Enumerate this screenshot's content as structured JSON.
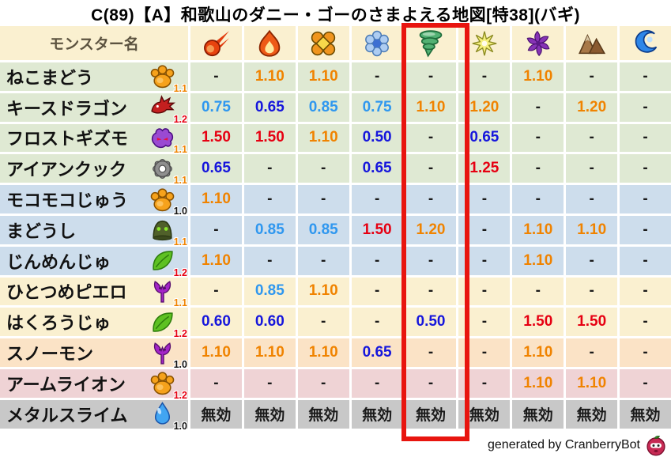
{
  "title": "C(89)【A】和歌山のダニー・ゴーのさまよえる地図[特38](バギ)",
  "chart_data": {
    "type": "table",
    "title": "C(89)【A】和歌山のダニー・ゴーのさまよえる地図[特38](バギ)",
    "name_header": "モンスター名",
    "column_icons": [
      "fireball-icon",
      "flame-icon",
      "burst-icon",
      "snowflake-icon",
      "tornado-icon",
      "spark-icon",
      "pinwheel-icon",
      "mountain-icon",
      "wave-icon"
    ],
    "highlighted_column_index": 4,
    "immune_label": "無効",
    "rows": [
      {
        "name": "ねこまどう",
        "family_icon": "paw-icon",
        "scale": "1.1",
        "row_color": "green",
        "values": [
          "-",
          "1.10",
          "1.10",
          "-",
          "-",
          "-",
          "1.10",
          "-",
          "-"
        ]
      },
      {
        "name": "キースドラゴン",
        "family_icon": "dragon-icon",
        "scale": "1.2",
        "row_color": "green",
        "values": [
          "0.75",
          "0.65",
          "0.85",
          "0.75",
          "1.10",
          "1.20",
          "-",
          "1.20",
          "-"
        ]
      },
      {
        "name": "フロストギズモ",
        "family_icon": "demon-icon",
        "scale": "1.1",
        "row_color": "green",
        "values": [
          "1.50",
          "1.50",
          "1.10",
          "0.50",
          "-",
          "0.65",
          "-",
          "-",
          "-"
        ]
      },
      {
        "name": "アイアンクック",
        "family_icon": "gear-icon",
        "scale": "1.1",
        "row_color": "green",
        "values": [
          "0.65",
          "-",
          "-",
          "0.65",
          "-",
          "1.25",
          "-",
          "-",
          "-"
        ]
      },
      {
        "name": "モコモコじゅう",
        "family_icon": "paw-icon",
        "scale": "1.0",
        "row_color": "blue",
        "values": [
          "1.10",
          "-",
          "-",
          "-",
          "-",
          "-",
          "-",
          "-",
          "-"
        ]
      },
      {
        "name": "まどうし",
        "family_icon": "hood-icon",
        "scale": "1.1",
        "row_color": "blue",
        "values": [
          "-",
          "0.85",
          "0.85",
          "1.50",
          "1.20",
          "-",
          "1.10",
          "1.10",
          "-"
        ]
      },
      {
        "name": "じんめんじゅ",
        "family_icon": "leaf-icon",
        "scale": "1.2",
        "row_color": "blue",
        "values": [
          "1.10",
          "-",
          "-",
          "-",
          "-",
          "-",
          "1.10",
          "-",
          "-"
        ]
      },
      {
        "name": "ひとつめピエロ",
        "family_icon": "trident-icon",
        "scale": "1.1",
        "row_color": "cream",
        "values": [
          "-",
          "0.85",
          "1.10",
          "-",
          "-",
          "-",
          "-",
          "-",
          "-"
        ]
      },
      {
        "name": "はくろうじゅ",
        "family_icon": "leaf-icon",
        "scale": "1.2",
        "row_color": "cream",
        "values": [
          "0.60",
          "0.60",
          "-",
          "-",
          "0.50",
          "-",
          "1.50",
          "1.50",
          "-"
        ]
      },
      {
        "name": "スノーモン",
        "family_icon": "trident-icon",
        "scale": "1.0",
        "row_color": "peach",
        "values": [
          "1.10",
          "1.10",
          "1.10",
          "0.65",
          "-",
          "-",
          "1.10",
          "-",
          "-"
        ]
      },
      {
        "name": "アームライオン",
        "family_icon": "paw-icon",
        "scale": "1.2",
        "row_color": "pink",
        "values": [
          "-",
          "-",
          "-",
          "-",
          "-",
          "-",
          "1.10",
          "1.10",
          "-"
        ]
      },
      {
        "name": "メタルスライム",
        "family_icon": "slime-icon",
        "scale": "1.0",
        "row_color": "gray",
        "values": [
          "無効",
          "無効",
          "無効",
          "無効",
          "無効",
          "無効",
          "無効",
          "無効",
          "無効"
        ]
      }
    ]
  },
  "footer": {
    "credit": "generated by CranberryBot",
    "icon": "cranberry-bot-icon"
  },
  "colors": {
    "header_bg": "#faf0d0",
    "header_text": "#5c5340",
    "row_colors": {
      "green": "#dfe9d3",
      "blue": "#cdddec",
      "cream": "#faf0d0",
      "peach": "#fbe3c6",
      "pink": "#efd3d5",
      "gray": "#c8c8c8"
    },
    "value_colors": {
      "boost_high": "#e60012",
      "boost": "#f08300",
      "resist": "#2f97ef",
      "resist_high": "#1616dc",
      "neutral": "#1a1a1a"
    },
    "scale_colors": {
      "1.0": "#111111",
      "1.1": "#f08300",
      "1.2": "#e60012"
    },
    "highlight_color": "#e8150f"
  }
}
